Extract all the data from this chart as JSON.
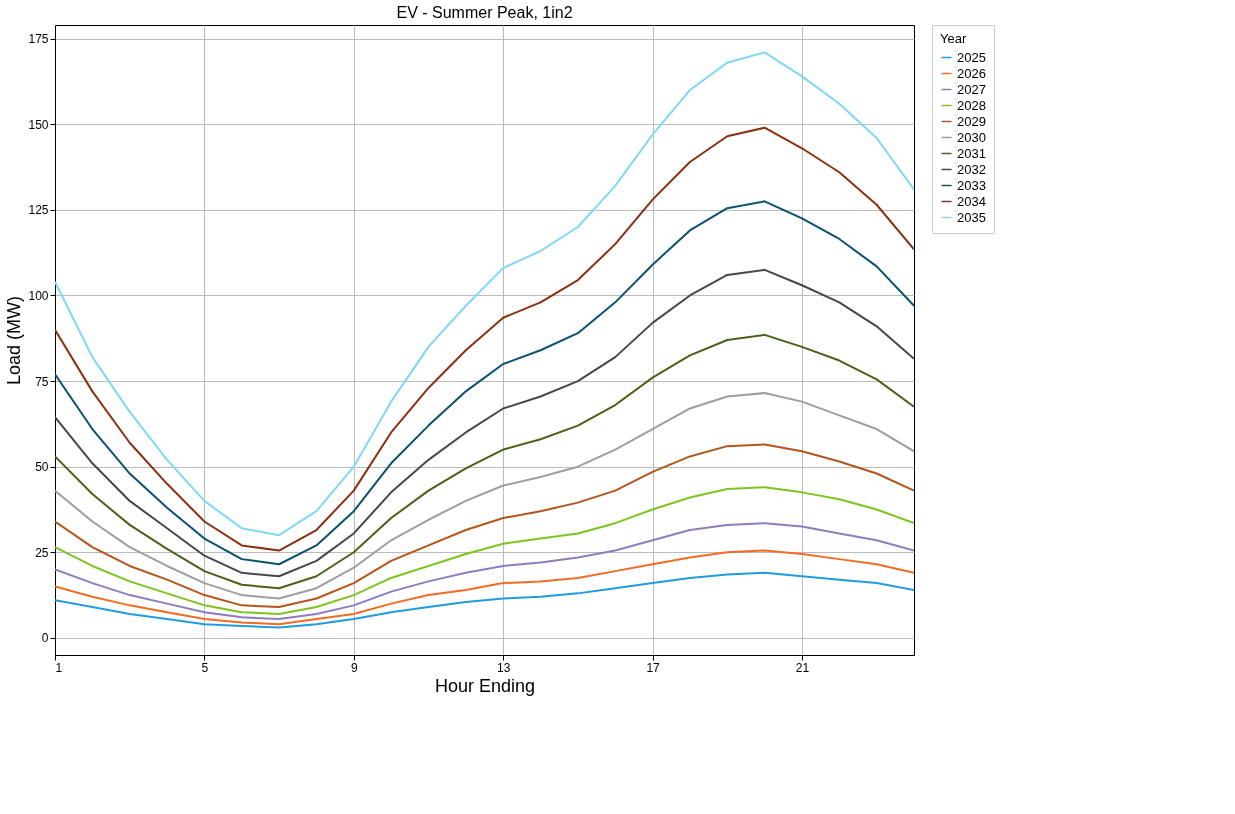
{
  "chart_data": {
    "type": "line",
    "title": "EV - Summer Peak, 1in2",
    "xlabel": "Hour Ending",
    "ylabel": "Load (MW)",
    "legend_title": "Year",
    "x": [
      1,
      2,
      3,
      4,
      5,
      6,
      7,
      8,
      9,
      10,
      11,
      12,
      13,
      14,
      15,
      16,
      17,
      18,
      19,
      20,
      21,
      22,
      23,
      24
    ],
    "xlim": [
      1,
      24
    ],
    "xticks": [
      1,
      5,
      9,
      13,
      17,
      21
    ],
    "ylim": [
      -5,
      179
    ],
    "yticks": [
      0,
      25,
      50,
      75,
      100,
      125,
      150,
      175
    ],
    "grid": true,
    "legend": "right",
    "marker": "none",
    "line_style": "solid",
    "series": [
      {
        "name": "2025",
        "color": "#1f9ce0",
        "values": [
          11,
          9,
          7,
          5.5,
          4,
          3.5,
          3,
          4,
          5.5,
          7.5,
          9,
          10.5,
          11.5,
          12,
          13,
          14.5,
          16,
          17.5,
          18.5,
          19,
          18,
          17,
          16,
          14
        ]
      },
      {
        "name": "2026",
        "color": "#f26b22",
        "values": [
          15,
          12,
          9.5,
          7.5,
          5.5,
          4.5,
          4,
          5.5,
          7,
          10,
          12.5,
          14,
          16,
          16.5,
          17.5,
          19.5,
          21.5,
          23.5,
          25,
          25.5,
          24.5,
          23,
          21.5,
          19
        ]
      },
      {
        "name": "2027",
        "color": "#8e7cc3",
        "values": [
          20,
          16,
          12.5,
          10,
          7.5,
          6,
          5.5,
          7,
          9.5,
          13.5,
          16.5,
          19,
          21,
          22,
          23.5,
          25.5,
          28.5,
          31.5,
          33,
          33.5,
          32.5,
          30.5,
          28.5,
          25.5
        ]
      },
      {
        "name": "2028",
        "color": "#7cc520",
        "values": [
          26.5,
          21,
          16.5,
          13,
          9.5,
          7.5,
          7,
          9,
          12.5,
          17.5,
          21,
          24.5,
          27.5,
          29,
          30.5,
          33.5,
          37.5,
          41,
          43.5,
          44,
          42.5,
          40.5,
          37.5,
          33.5
        ]
      },
      {
        "name": "2029",
        "color": "#b5541b",
        "values": [
          34,
          26.5,
          21,
          17,
          12.5,
          9.5,
          9,
          11.5,
          16,
          22.5,
          27,
          31.5,
          35,
          37,
          39.5,
          43,
          48.5,
          53,
          56,
          56.5,
          54.5,
          51.5,
          48,
          43
        ]
      },
      {
        "name": "2030",
        "color": "#9e9e9e",
        "values": [
          43,
          34,
          26.5,
          21,
          16,
          12.5,
          11.5,
          14.5,
          20.5,
          28.5,
          34.5,
          40,
          44.5,
          47,
          50,
          55,
          61,
          67,
          70.5,
          71.5,
          69,
          65,
          61,
          54.5
        ]
      },
      {
        "name": "2031",
        "color": "#4a6116",
        "values": [
          53,
          42,
          33,
          26,
          19.5,
          15.5,
          14.5,
          18,
          25,
          35,
          43,
          49.5,
          55,
          58,
          62,
          68,
          76,
          82.5,
          87,
          88.5,
          85,
          81,
          75.5,
          67.5
        ]
      },
      {
        "name": "2032",
        "color": "#464653",
        "values": [
          64.5,
          51,
          40,
          32,
          24,
          19,
          18,
          22.5,
          30.5,
          42.5,
          52,
          60,
          67,
          70.5,
          75,
          82,
          92,
          100,
          106,
          107.5,
          103,
          98,
          91,
          81.5
        ]
      },
      {
        "name": "2033",
        "color": "#0a5270",
        "values": [
          77,
          61,
          48,
          38,
          29,
          23,
          21.5,
          27,
          37,
          51,
          62,
          72,
          80,
          84,
          89,
          98,
          109,
          119,
          125.5,
          127.5,
          122.5,
          116.5,
          108.5,
          97
        ]
      },
      {
        "name": "2034",
        "color": "#8b3011",
        "values": [
          90,
          72,
          57,
          45,
          34,
          27,
          25.5,
          31.5,
          43,
          60,
          73,
          84,
          93.5,
          98,
          104.5,
          115,
          128,
          139,
          146.5,
          149,
          143,
          136,
          126.5,
          113.5
        ]
      },
      {
        "name": "2035",
        "color": "#7fd7f7",
        "values": [
          104,
          82,
          66,
          52,
          40,
          32,
          30,
          37,
          50,
          69,
          85,
          97,
          108,
          113,
          120,
          132,
          147,
          160,
          168,
          171,
          164,
          156,
          146,
          131
        ]
      }
    ]
  }
}
